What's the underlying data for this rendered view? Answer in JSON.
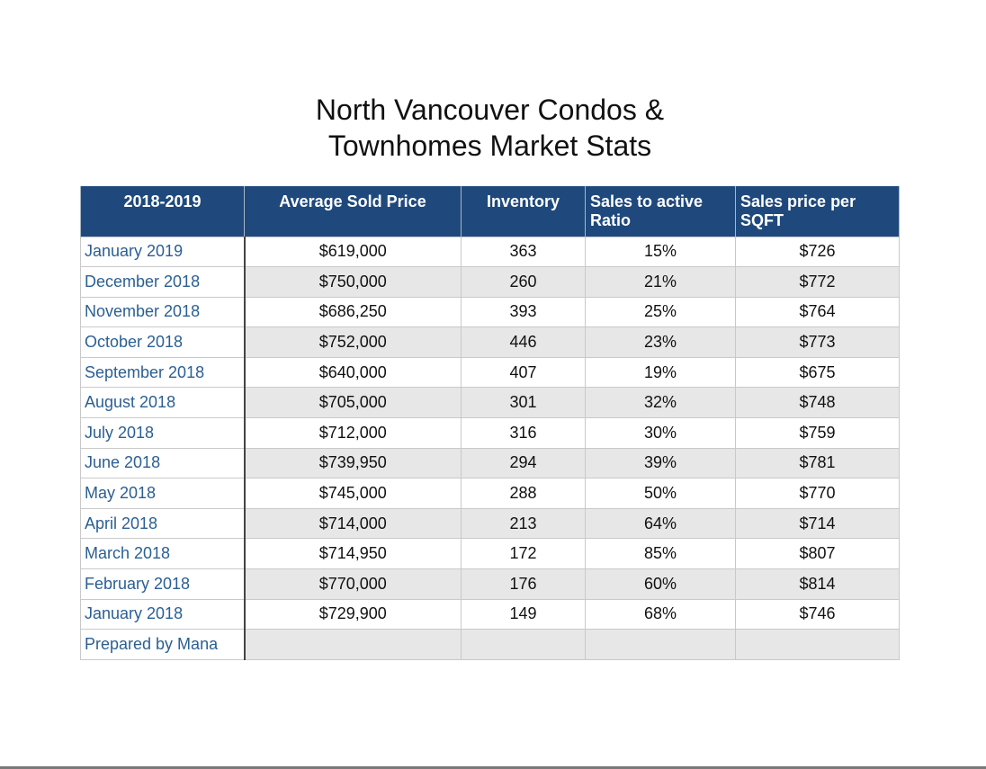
{
  "title": {
    "line1": "North Vancouver Condos &",
    "line2": "Townhomes Market Stats"
  },
  "table": {
    "headers": [
      "2018-2019",
      "Average Sold Price",
      "Inventory",
      "Sales to active Ratio",
      "Sales price per SQFT"
    ],
    "rows": [
      [
        "January 2019",
        "$619,000",
        "363",
        "15%",
        "$726"
      ],
      [
        "December 2018",
        "$750,000",
        "260",
        "21%",
        "$772"
      ],
      [
        "November 2018",
        "$686,250",
        "393",
        "25%",
        "$764"
      ],
      [
        "October 2018",
        "$752,000",
        "446",
        "23%",
        "$773"
      ],
      [
        "September 2018",
        "$640,000",
        "407",
        "19%",
        "$675"
      ],
      [
        "August 2018",
        "$705,000",
        "301",
        "32%",
        "$748"
      ],
      [
        "July 2018",
        "$712,000",
        "316",
        "30%",
        "$759"
      ],
      [
        "June 2018",
        "$739,950",
        "294",
        "39%",
        "$781"
      ],
      [
        "May 2018",
        "$745,000",
        "288",
        "50%",
        "$770"
      ],
      [
        "April 2018",
        "$714,000",
        "213",
        "64%",
        "$714"
      ],
      [
        "March 2018",
        "$714,950",
        "172",
        "85%",
        "$807"
      ],
      [
        "February 2018",
        "$770,000",
        "176",
        "60%",
        "$814"
      ],
      [
        "January 2018",
        "$729,900",
        "149",
        "68%",
        "$746"
      ],
      [
        "Prepared by Mana",
        "",
        "",
        "",
        ""
      ]
    ]
  },
  "colors": {
    "header_bg": "#1f497c",
    "header_text": "#ffffff",
    "label_text": "#2b5f93",
    "alt_row_bg": "#e7e7e7"
  }
}
